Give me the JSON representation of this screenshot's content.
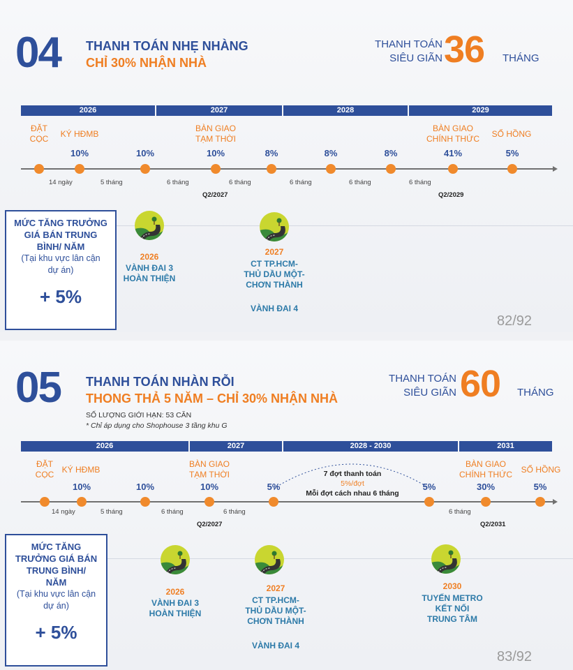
{
  "slide1": {
    "number": "04",
    "title1": "THANH TOÁN NHẸ NHÀNG",
    "title2": "CHỈ 30% NHẬN NHÀ",
    "pay_label1": "THANH TOÁN",
    "pay_label2": "SIÊU GIÃN",
    "pay_months": "36",
    "pay_unit": "THÁNG",
    "years": [
      "2026",
      "2027",
      "2028",
      "2029"
    ],
    "points": [
      {
        "label1": "ĐẶT",
        "label2": "CỌC",
        "pct": ""
      },
      {
        "label1": "KÝ HĐMB",
        "label2": "",
        "pct": "10%"
      },
      {
        "label1": "",
        "label2": "",
        "pct": "10%"
      },
      {
        "label1": "BÀN GIAO",
        "label2": "TẠM THỜI",
        "pct": "10%"
      },
      {
        "label1": "",
        "label2": "",
        "pct": "8%"
      },
      {
        "label1": "",
        "label2": "",
        "pct": "8%"
      },
      {
        "label1": "",
        "label2": "",
        "pct": "8%"
      },
      {
        "label1": "BÀN GIAO",
        "label2": "CHÍNH THỨC",
        "pct": "41%"
      },
      {
        "label1": "SỔ HỒNG",
        "label2": "",
        "pct": "5%"
      }
    ],
    "durations": [
      "14 ngày",
      "5 tháng",
      "6 tháng",
      "6 tháng",
      "6 tháng",
      "6 tháng",
      "6 tháng"
    ],
    "quarters": [
      "Q2/2027",
      "Q2/2029"
    ],
    "box": {
      "title": [
        "MỨC TĂNG TRƯỞNG",
        "GIÁ BÁN TRUNG",
        "BÌNH/ NĂM"
      ],
      "sub": [
        "(Tại khu vực lân cận",
        "dự án)"
      ],
      "value": "+ 5%"
    },
    "milestones": [
      {
        "year": "2026",
        "text": [
          "VÀNH ĐAI 3",
          "HOÀN THIỆN"
        ]
      },
      {
        "year": "2027",
        "text": [
          "CT TP.HCM-",
          "THỦ DẦU MỘT-",
          "CHƠN THÀNH"
        ],
        "extra": "VÀNH ĐAI 4"
      }
    ],
    "page": "82/92"
  },
  "slide2": {
    "number": "05",
    "title1": "THANH TOÁN NHÀN RỖI",
    "title2": "THONG THẢ 5 NĂM – CHỈ 30% NHẬN NHÀ",
    "pay_label1": "THANH TOÁN",
    "pay_label2": "SIÊU GIÃN",
    "pay_months": "60",
    "pay_unit": "THÁNG",
    "limit": "SỐ LƯỢNG GIỚI HẠN: 53 CĂN",
    "apply": "* Chỉ áp dụng cho Shophouse 3 tầng khu G",
    "years": [
      "2026",
      "2027",
      "2028 - 2030",
      "2031"
    ],
    "points": [
      {
        "label1": "ĐẶT",
        "label2": "CỌC",
        "pct": ""
      },
      {
        "label1": "KÝ HĐMB",
        "label2": "",
        "pct": "10%"
      },
      {
        "label1": "",
        "label2": "",
        "pct": "10%"
      },
      {
        "label1": "BÀN GIAO",
        "label2": "TẠM THỜI",
        "pct": "10%"
      },
      {
        "label1": "",
        "label2": "",
        "pct": "5%"
      },
      {
        "label1": "",
        "label2": "",
        "pct": "5%"
      },
      {
        "label1": "BÀN GIAO",
        "label2": "CHÍNH THỨC",
        "pct": "30%"
      },
      {
        "label1": "SỔ HỒNG",
        "label2": "",
        "pct": "5%"
      }
    ],
    "note": {
      "line1": "7 đợt thanh toán",
      "line2": "5%/đợt",
      "line3": "Mỗi đợt cách nhau 6 tháng"
    },
    "durations": [
      "14 ngày",
      "5 tháng",
      "6 tháng",
      "6 tháng",
      "6 tháng"
    ],
    "quarters": [
      "Q2/2027",
      "Q2/2031"
    ],
    "box": {
      "title": [
        "MỨC TĂNG",
        "TRƯỞNG GIÁ BÁN",
        "TRUNG BÌNH/",
        "NĂM"
      ],
      "sub": [
        "(Tại khu vực lân cận",
        "dự án)"
      ],
      "value": "+ 5%"
    },
    "milestones": [
      {
        "year": "2026",
        "text": [
          "VÀNH ĐAI 3",
          "HOÀN THIỆN"
        ]
      },
      {
        "year": "2027",
        "text": [
          "CT TP.HCM-",
          "THỦ DẦU MỘT-",
          "CHƠN THÀNH"
        ],
        "extra": "VÀNH ĐAI 4"
      },
      {
        "year": "2030",
        "text": [
          "TUYẾN METRO",
          "KẾT NỐI",
          "TRUNG TÂM"
        ]
      }
    ],
    "page": "83/92"
  }
}
